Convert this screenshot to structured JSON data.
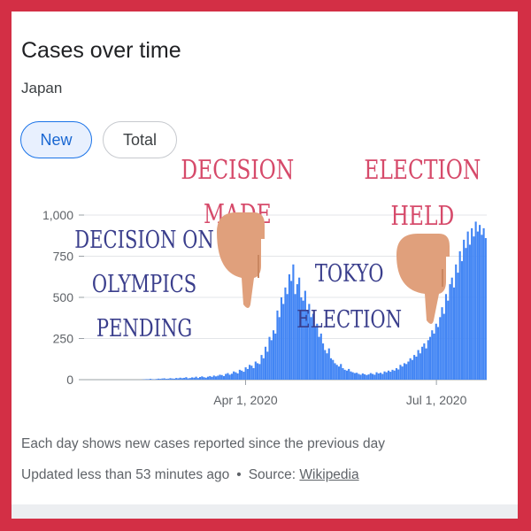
{
  "header": {
    "title": "Cases over time",
    "subtitle": "Japan"
  },
  "tabs": [
    {
      "label": "New",
      "selected": true
    },
    {
      "label": "Total",
      "selected": false
    }
  ],
  "footer": {
    "note": "Each day shows new cases reported since the previous day",
    "updated": "Updated less than 53 minutes ago",
    "source_prefix": "Source:",
    "source_link": "Wikipedia"
  },
  "annotations": {
    "olympics": [
      "DECISION ON",
      "OLYMPICS",
      "PENDING"
    ],
    "decision_made": [
      "DECISION",
      "MADE"
    ],
    "tokyo_election": [
      "TOKYO",
      "ELECTION"
    ],
    "election_held": [
      "ELECTION",
      "HELD"
    ]
  },
  "colors": {
    "bars": "#4285f4",
    "accent": "#1a73e8",
    "frame": "#d32f45",
    "annotation_red": "#d64a6a",
    "annotation_blue": "#3a3e8c",
    "hand": "#e0a07c"
  },
  "chart_data": {
    "type": "bar",
    "ylim": [
      0,
      1000
    ],
    "yticks": [
      0,
      250,
      500,
      750,
      1000
    ],
    "ytick_labels": [
      "0",
      "250",
      "500",
      "750",
      "1,000"
    ],
    "xticks": [
      {
        "date": "2020-04-01",
        "label": "Apr 1, 2020"
      },
      {
        "date": "2020-07-01",
        "label": "Jul 1, 2020"
      }
    ],
    "x_start": "2020-01-15",
    "x_end": "2020-07-25",
    "series": [
      {
        "values": [
          0,
          0,
          0,
          0,
          0,
          0,
          0,
          0,
          0,
          0,
          0,
          0,
          0,
          0,
          0,
          0,
          0,
          0,
          0,
          0,
          0,
          0,
          0,
          0,
          0,
          0,
          0,
          0,
          0,
          1,
          2,
          3,
          3,
          5,
          3,
          2,
          4,
          6,
          5,
          7,
          8,
          5,
          6,
          9,
          7,
          6,
          10,
          8,
          12,
          9,
          11,
          15,
          8,
          10,
          14,
          12,
          18,
          10,
          16,
          20,
          15,
          12,
          18,
          22,
          17,
          25,
          20,
          24,
          30,
          28,
          22,
          35,
          40,
          30,
          36,
          50,
          45,
          38,
          60,
          55,
          48,
          75,
          65,
          90,
          85,
          70,
          110,
          100,
          95,
          150,
          130,
          200,
          170,
          260,
          240,
          300,
          280,
          420,
          380,
          500,
          460,
          560,
          520,
          640,
          600,
          700,
          520,
          580,
          620,
          500,
          480,
          540,
          420,
          460,
          380,
          400,
          320,
          340,
          260,
          280,
          220,
          180,
          160,
          190,
          130,
          120,
          100,
          90,
          80,
          95,
          70,
          60,
          55,
          65,
          50,
          45,
          40,
          42,
          35,
          30,
          38,
          33,
          28,
          32,
          40,
          35,
          30,
          45,
          38,
          42,
          35,
          50,
          45,
          55,
          48,
          60,
          55,
          70,
          62,
          90,
          80,
          100,
          95,
          110,
          130,
          120,
          150,
          140,
          180,
          160,
          200,
          220,
          190,
          240,
          260,
          300,
          280,
          340,
          320,
          380,
          440,
          400,
          520,
          480,
          580,
          620,
          560,
          700,
          650,
          780,
          720,
          850,
          800,
          900,
          820,
          920,
          870,
          960,
          900,
          940,
          880,
          920,
          860
        ]
      }
    ]
  }
}
